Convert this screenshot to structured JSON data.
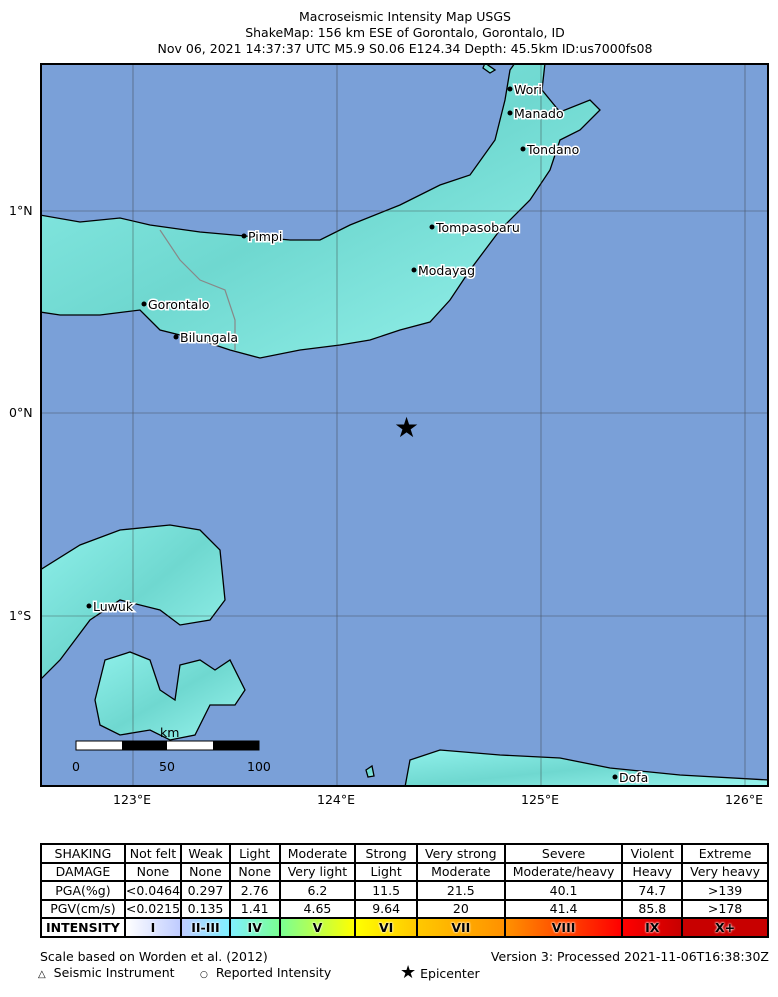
{
  "title": {
    "line1": "Macroseismic Intensity Map USGS",
    "line2": "ShakeMap: 156 km ESE of Gorontalo, Gorontalo, ID",
    "line3": "Nov 06, 2021 14:37:37 UTC M5.9 S0.06 E124.34 Depth: 45.5km ID:us7000fs08"
  },
  "map": {
    "colors": {
      "water": "#7aa0d8",
      "land": "#7fe8e0"
    },
    "lat_labels": [
      "1°N",
      "0°N",
      "1°S"
    ],
    "lon_labels": [
      "123°E",
      "124°E",
      "125°E",
      "126°E"
    ],
    "cities": [
      "Wori",
      "Manado",
      "Tondano",
      "Pimpi",
      "Tompasobaru",
      "Modayag",
      "Gorontalo",
      "Bilungala",
      "Luwuk",
      "Dofa"
    ],
    "epicenter_icon": "star-icon",
    "scale": {
      "unit": "km",
      "ticks": [
        "0",
        "50",
        "100"
      ]
    }
  },
  "legend": {
    "rows": [
      [
        "SHAKING",
        "Not felt",
        "Weak",
        "Light",
        "Moderate",
        "Strong",
        "Very strong",
        "Severe",
        "Violent",
        "Extreme"
      ],
      [
        "DAMAGE",
        "None",
        "None",
        "None",
        "Very light",
        "Light",
        "Moderate",
        "Moderate/heavy",
        "Heavy",
        "Very heavy"
      ],
      [
        "PGA(%g)",
        "<0.0464",
        "0.297",
        "2.76",
        "6.2",
        "11.5",
        "21.5",
        "40.1",
        "74.7",
        ">139"
      ],
      [
        "PGV(cm/s)",
        "<0.0215",
        "0.135",
        "1.41",
        "4.65",
        "9.64",
        "20",
        "41.4",
        "85.8",
        ">178"
      ]
    ],
    "intensity": [
      "INTENSITY",
      "I",
      "II-III",
      "IV",
      "V",
      "VI",
      "VII",
      "VIII",
      "IX",
      "X+"
    ],
    "intensity_colors": [
      "#ffffff",
      "#bfccff",
      "#80f0ff",
      "#7aff93",
      "#ffff00",
      "#ffc800",
      "#ff9100",
      "#ff0000",
      "#c80000"
    ]
  },
  "footer": {
    "scale_note": "Scale based on Worden et al. (2012)",
    "version": "Version 3: Processed 2021-11-06T16:38:30Z",
    "seismic": "Seismic Instrument",
    "reported": "Reported Intensity",
    "epicenter": "Epicenter"
  }
}
